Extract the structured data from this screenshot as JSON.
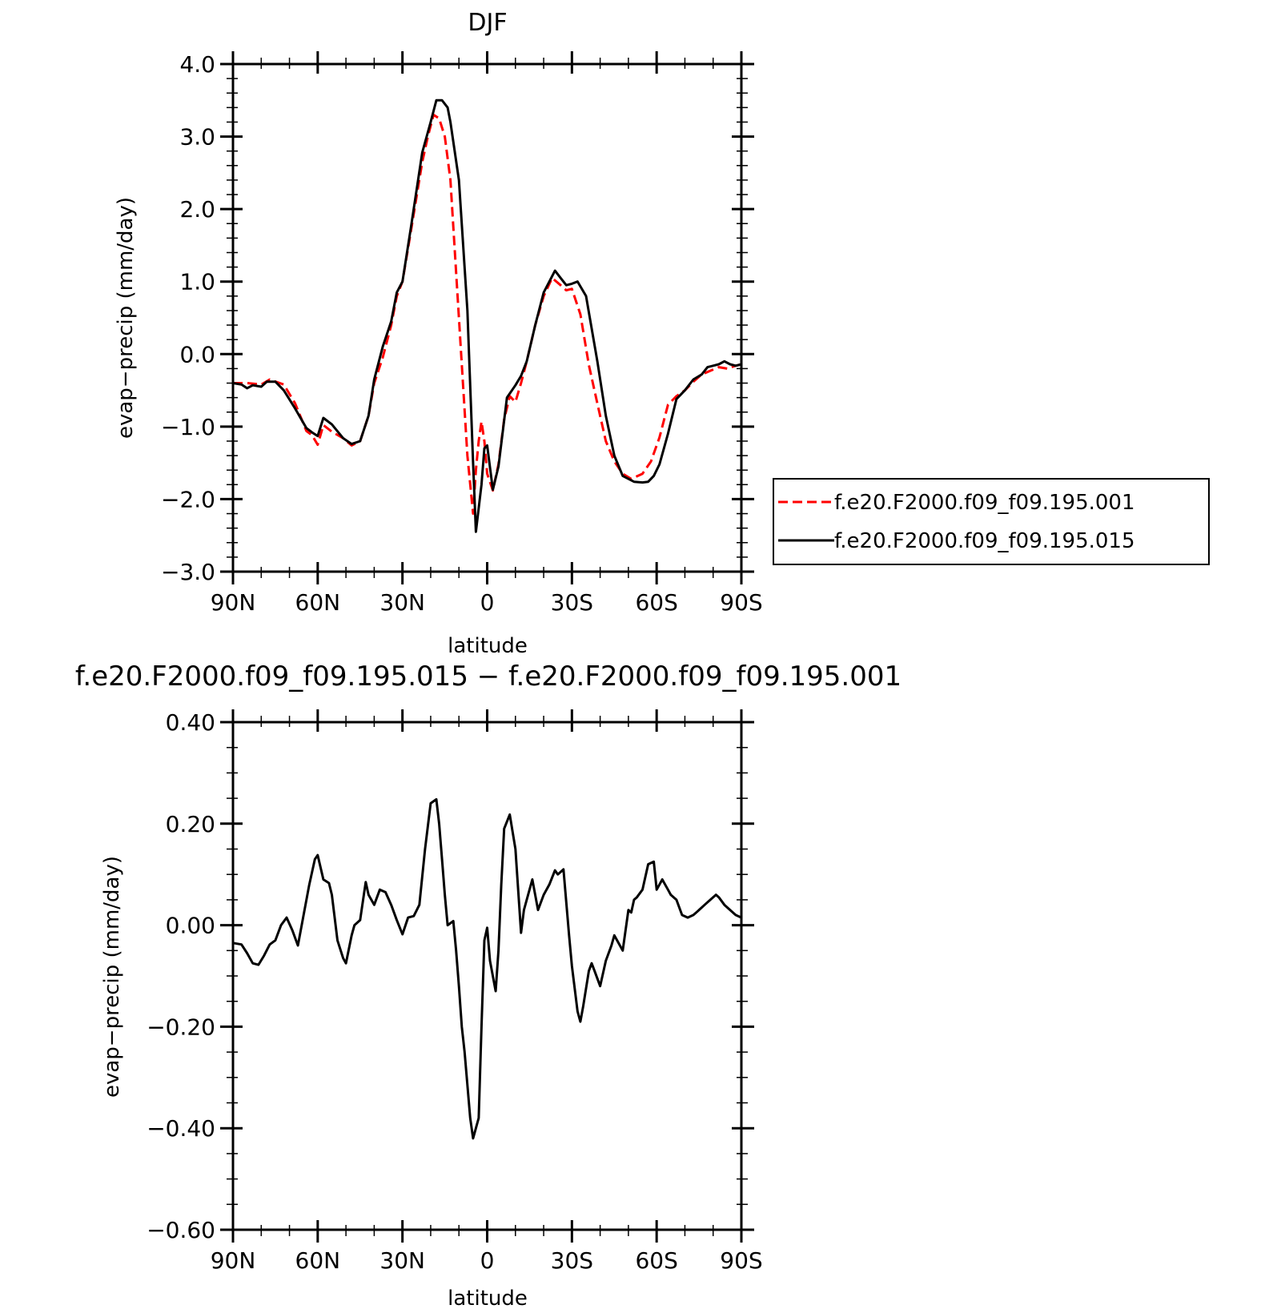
{
  "chart_data": [
    {
      "type": "line",
      "title": "DJF",
      "xlabel": "latitude",
      "ylabel": "evap−precip (mm/day)",
      "xlim": [
        90,
        -90
      ],
      "ylim": [
        -3.0,
        4.0
      ],
      "xticks": [
        90,
        60,
        30,
        0,
        -30,
        -60,
        -90
      ],
      "xtick_labels": [
        "90N",
        "60N",
        "30N",
        "0",
        "30S",
        "60S",
        "90S"
      ],
      "yticks": [
        -3,
        -2,
        -1,
        0,
        1,
        2,
        3,
        4
      ],
      "ytick_labels": [
        "−3.0",
        "−2.0",
        "−1.0",
        "0.0",
        "1.0",
        "2.0",
        "3.0",
        "4.0"
      ],
      "legend_position": "outside-right",
      "series": [
        {
          "name": "f.e20.F2000.f09_f09.195.001",
          "color": "#ff0000",
          "dash": "dashed",
          "x": [
            90,
            85,
            80,
            77,
            72,
            68,
            64,
            62,
            60,
            58,
            55,
            51,
            48,
            45,
            42,
            40,
            37,
            34,
            32,
            30,
            27,
            23,
            21,
            19,
            17,
            15,
            13,
            10,
            7,
            5,
            4,
            3,
            2,
            1,
            0,
            -2,
            -4,
            -6,
            -8,
            -10,
            -12,
            -14,
            -17,
            -20,
            -23,
            -26,
            -28,
            -30,
            -33,
            -36,
            -39,
            -42,
            -45,
            -48,
            -51,
            -55,
            -58,
            -61,
            -64,
            -67,
            -70,
            -73,
            -76,
            -79,
            -82,
            -85,
            -88,
            -90
          ],
          "y": [
            -0.4,
            -0.4,
            -0.42,
            -0.35,
            -0.42,
            -0.68,
            -1.06,
            -1.12,
            -1.25,
            -0.98,
            -1.07,
            -1.16,
            -1.26,
            -1.2,
            -0.85,
            -0.4,
            -0.05,
            0.4,
            0.8,
            1.0,
            1.7,
            2.65,
            3.0,
            3.3,
            3.25,
            3.0,
            2.4,
            0.5,
            -1.4,
            -2.2,
            -1.6,
            -1.2,
            -0.93,
            -1.2,
            -1.65,
            -1.88,
            -1.52,
            -0.9,
            -0.58,
            -0.66,
            -0.4,
            -0.1,
            0.4,
            0.8,
            1.05,
            0.95,
            0.88,
            0.9,
            0.55,
            -0.15,
            -0.68,
            -1.2,
            -1.48,
            -1.65,
            -1.72,
            -1.65,
            -1.48,
            -1.15,
            -0.7,
            -0.58,
            -0.5,
            -0.38,
            -0.28,
            -0.23,
            -0.18,
            -0.2,
            -0.16,
            -0.14
          ]
        },
        {
          "name": "f.e20.F2000.f09_f09.195.015",
          "color": "#000000",
          "dash": "solid",
          "x": [
            90,
            87,
            85,
            83,
            80,
            78,
            75,
            72,
            68,
            64,
            62,
            60,
            58,
            55,
            51,
            48,
            45,
            42,
            40,
            37,
            34,
            32,
            30,
            27,
            23,
            20,
            18,
            16,
            14,
            13,
            10,
            7,
            5,
            4,
            2,
            1,
            0,
            -2,
            -4,
            -7,
            -10,
            -12,
            -14,
            -17,
            -20,
            -24,
            -26,
            -28,
            -30,
            -32,
            -35,
            -39,
            -42,
            -45,
            -48,
            -52,
            -55,
            -57,
            -59,
            -61,
            -64,
            -67,
            -70,
            -73,
            -76,
            -78,
            -82,
            -84,
            -86,
            -88,
            -90
          ],
          "y": [
            -0.4,
            -0.42,
            -0.47,
            -0.43,
            -0.45,
            -0.38,
            -0.38,
            -0.5,
            -0.75,
            -1.02,
            -1.08,
            -1.13,
            -0.88,
            -0.97,
            -1.16,
            -1.24,
            -1.2,
            -0.85,
            -0.35,
            0.1,
            0.45,
            0.85,
            1.0,
            1.75,
            2.78,
            3.2,
            3.5,
            3.5,
            3.4,
            3.2,
            2.4,
            0.6,
            -1.5,
            -2.45,
            -1.8,
            -1.3,
            -1.26,
            -1.87,
            -1.55,
            -0.6,
            -0.43,
            -0.3,
            -0.1,
            0.4,
            0.85,
            1.15,
            1.05,
            0.95,
            0.97,
            1.0,
            0.8,
            -0.1,
            -0.85,
            -1.4,
            -1.68,
            -1.76,
            -1.77,
            -1.76,
            -1.68,
            -1.52,
            -1.1,
            -0.62,
            -0.5,
            -0.35,
            -0.28,
            -0.18,
            -0.14,
            -0.1,
            -0.14,
            -0.16,
            -0.14
          ]
        }
      ]
    },
    {
      "type": "line",
      "title": "f.e20.F2000.f09_f09.195.015 − f.e20.F2000.f09_f09.195.001",
      "xlabel": "latitude",
      "ylabel": "evap−precip (mm/day)",
      "xlim": [
        90,
        -90
      ],
      "ylim": [
        -0.6,
        0.4
      ],
      "xticks": [
        90,
        60,
        30,
        0,
        -30,
        -60,
        -90
      ],
      "xtick_labels": [
        "90N",
        "60N",
        "30N",
        "0",
        "30S",
        "60S",
        "90S"
      ],
      "yticks": [
        -0.6,
        -0.4,
        -0.2,
        0,
        0.2,
        0.4
      ],
      "ytick_labels": [
        "−0.60",
        "−0.40",
        "−0.20",
        "0.00",
        "0.20",
        "0.40"
      ],
      "series": [
        {
          "color": "#000000",
          "dash": "solid",
          "x": [
            90,
            87,
            85,
            83,
            81,
            79,
            77,
            75,
            73,
            71,
            69,
            67,
            65,
            63,
            61,
            60,
            58,
            56,
            55,
            53,
            51,
            50,
            48,
            47,
            45,
            43,
            42,
            40,
            38,
            36,
            34,
            32,
            30,
            28,
            26,
            24,
            22,
            20,
            18,
            17,
            16,
            15,
            14,
            12,
            11,
            10,
            9,
            8,
            6,
            5,
            4,
            3,
            2,
            1,
            0,
            -1,
            -3,
            -4,
            -5,
            -6,
            -8,
            -10,
            -12,
            -13,
            -14,
            -16,
            -18,
            -20,
            -22,
            -24,
            -25,
            -27,
            -29,
            -30,
            -32,
            -33,
            -34,
            -36,
            -37,
            -38,
            -40,
            -42,
            -44,
            -45,
            -46,
            -48,
            -50,
            -51,
            -52,
            -53,
            -55,
            -57,
            -59,
            -60,
            -62,
            -64,
            -65,
            -67,
            -69,
            -71,
            -73,
            -74,
            -75,
            -77,
            -79,
            -81,
            -82,
            -84,
            -86,
            -88,
            -90
          ],
          "y": [
            -0.035,
            -0.038,
            -0.055,
            -0.075,
            -0.078,
            -0.06,
            -0.038,
            -0.03,
            0.0,
            0.015,
            -0.01,
            -0.04,
            0.02,
            0.08,
            0.13,
            0.138,
            0.09,
            0.083,
            0.06,
            -0.03,
            -0.065,
            -0.075,
            -0.02,
            0.0,
            0.01,
            0.085,
            0.06,
            0.04,
            0.07,
            0.065,
            0.04,
            0.01,
            -0.018,
            0.015,
            0.018,
            0.04,
            0.15,
            0.24,
            0.248,
            0.2,
            0.13,
            0.06,
            0.0,
            0.008,
            -0.05,
            -0.12,
            -0.2,
            -0.25,
            -0.38,
            -0.42,
            -0.4,
            -0.38,
            -0.2,
            -0.03,
            -0.005,
            -0.07,
            -0.13,
            -0.05,
            0.08,
            0.19,
            0.218,
            0.15,
            -0.015,
            0.03,
            0.05,
            0.09,
            0.03,
            0.06,
            0.08,
            0.108,
            0.1,
            0.11,
            -0.02,
            -0.08,
            -0.17,
            -0.19,
            -0.16,
            -0.09,
            -0.075,
            -0.09,
            -0.12,
            -0.07,
            -0.04,
            -0.02,
            -0.03,
            -0.05,
            0.03,
            0.025,
            0.05,
            0.055,
            0.07,
            0.12,
            0.125,
            0.07,
            0.09,
            0.07,
            0.06,
            0.05,
            0.02,
            0.015,
            0.02,
            0.025,
            0.03,
            0.04,
            0.05,
            0.06,
            0.055,
            0.04,
            0.03,
            0.02,
            0.015
          ]
        }
      ]
    }
  ]
}
